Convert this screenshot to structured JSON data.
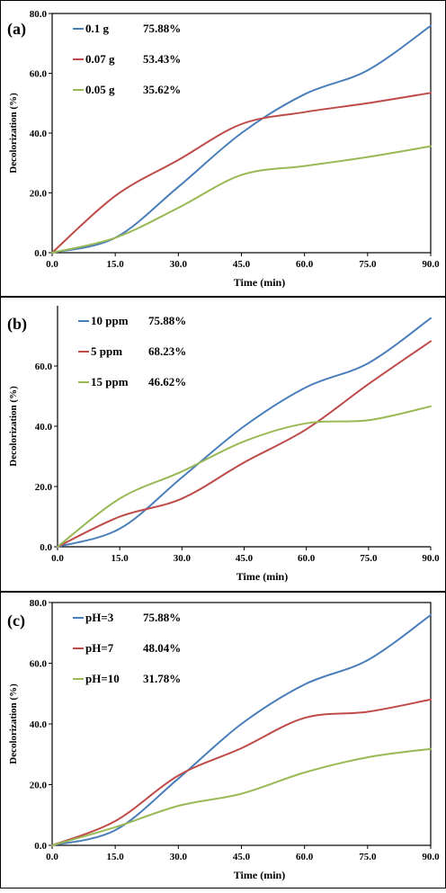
{
  "colors": {
    "blue": "#4a7ebb",
    "red": "#be4b48",
    "green": "#98b954",
    "axis": "#000000"
  },
  "chart_data": [
    {
      "type": "line",
      "panel_label": "(a)",
      "xlabel": "Time (min)",
      "ylabel": "Decolorization (%)",
      "x_ticks": [
        "0.0",
        "15.0",
        "30.0",
        "45.0",
        "60.0",
        "75.0",
        "90.0"
      ],
      "y_ticks": [
        "0.0",
        "20.0",
        "40.0",
        "60.0",
        "80.0"
      ],
      "xlim": [
        0,
        90
      ],
      "ylim": [
        0,
        80
      ],
      "x": [
        0,
        15,
        30,
        45,
        60,
        75,
        90
      ],
      "legend_position": "top-left",
      "series": [
        {
          "name": "0.1  g",
          "final": "75.88%",
          "color": "blue",
          "values": [
            0,
            5,
            22,
            40,
            53,
            61,
            75.88
          ]
        },
        {
          "name": "0.07 g",
          "final": "53.43%",
          "color": "red",
          "values": [
            0,
            19,
            31,
            43,
            47,
            50,
            53.43
          ]
        },
        {
          "name": "0.05 g",
          "final": "35.62%",
          "color": "green",
          "values": [
            0,
            5,
            15,
            26,
            29,
            32,
            35.62
          ]
        }
      ]
    },
    {
      "type": "line",
      "panel_label": "(b)",
      "xlabel": "Time (min)",
      "ylabel": "Decolorization (%)",
      "x_ticks": [
        "0.0",
        "15.0",
        "30.0",
        "45.0",
        "60.0",
        "75.0",
        "90.0"
      ],
      "y_ticks": [
        "0.0",
        "20.0",
        "40.0",
        "60.0"
      ],
      "xlim": [
        0,
        90
      ],
      "ylim": [
        0,
        80
      ],
      "x": [
        0,
        15,
        30,
        45,
        60,
        75,
        90
      ],
      "legend_position": "top-left",
      "series": [
        {
          "name": "10 ppm",
          "final": "75.88%",
          "color": "blue",
          "values": [
            0,
            6,
            23,
            40,
            53,
            61,
            75.88
          ]
        },
        {
          "name": "5   ppm",
          "final": "68.23%",
          "color": "red",
          "values": [
            0,
            10,
            16,
            28,
            39,
            54,
            68.23
          ]
        },
        {
          "name": "15 ppm",
          "final": "46.62%",
          "color": "green",
          "values": [
            0,
            16,
            25,
            35,
            41,
            42,
            46.62
          ]
        }
      ]
    },
    {
      "type": "line",
      "panel_label": "(c)",
      "xlabel": "Time (min)",
      "ylabel": "Decolorization (%)",
      "x_ticks": [
        "0.0",
        "15.0",
        "30.0",
        "45.0",
        "60.0",
        "75.0",
        "90.0"
      ],
      "y_ticks": [
        "0.0",
        "20.0",
        "40.0",
        "60.0",
        "80.0"
      ],
      "xlim": [
        0,
        90
      ],
      "ylim": [
        0,
        80
      ],
      "x": [
        0,
        15,
        30,
        45,
        60,
        75,
        90
      ],
      "legend_position": "top-left",
      "series": [
        {
          "name": "pH=3",
          "final": "75.88%",
          "color": "blue",
          "values": [
            0,
            5,
            22,
            40,
            53,
            61,
            75.88
          ]
        },
        {
          "name": "pH=7",
          "final": "48.04%",
          "color": "red",
          "values": [
            0,
            8,
            23,
            32,
            42,
            44,
            48.04
          ]
        },
        {
          "name": "pH=10",
          "final": "31.78%",
          "color": "green",
          "values": [
            0,
            6,
            13,
            17,
            24,
            29,
            31.78
          ]
        }
      ]
    }
  ]
}
